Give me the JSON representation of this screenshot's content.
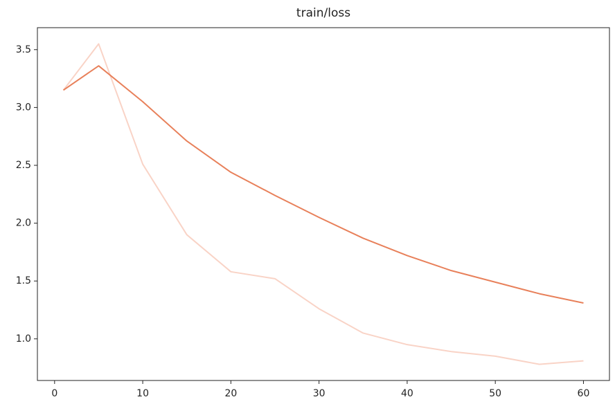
{
  "chart_data": {
    "type": "line",
    "title": "train/loss",
    "x": [
      1,
      5,
      10,
      15,
      20,
      25,
      30,
      35,
      40,
      45,
      50,
      55,
      60
    ],
    "series": [
      {
        "color": "#f9d3c6",
        "values": [
          3.15,
          3.55,
          2.51,
          1.9,
          1.58,
          1.52,
          1.26,
          1.05,
          0.95,
          0.89,
          0.85,
          0.78,
          0.81
        ]
      },
      {
        "color": "#e8805a",
        "values": [
          3.15,
          3.36,
          3.05,
          2.71,
          2.44,
          2.24,
          2.05,
          1.87,
          1.72,
          1.59,
          1.49,
          1.39,
          1.31
        ]
      }
    ],
    "xlim": [
      -1.95,
      62.95
    ],
    "xticks": [
      0,
      10,
      20,
      30,
      40,
      50,
      60
    ],
    "ylim": [
      0.64,
      3.69
    ],
    "yticks": [
      {
        "value": 1,
        "label": "1.0"
      },
      1.5,
      {
        "value": 2,
        "label": "2.0"
      },
      2.5,
      {
        "value": 3,
        "label": "3.0"
      },
      3.5
    ]
  }
}
